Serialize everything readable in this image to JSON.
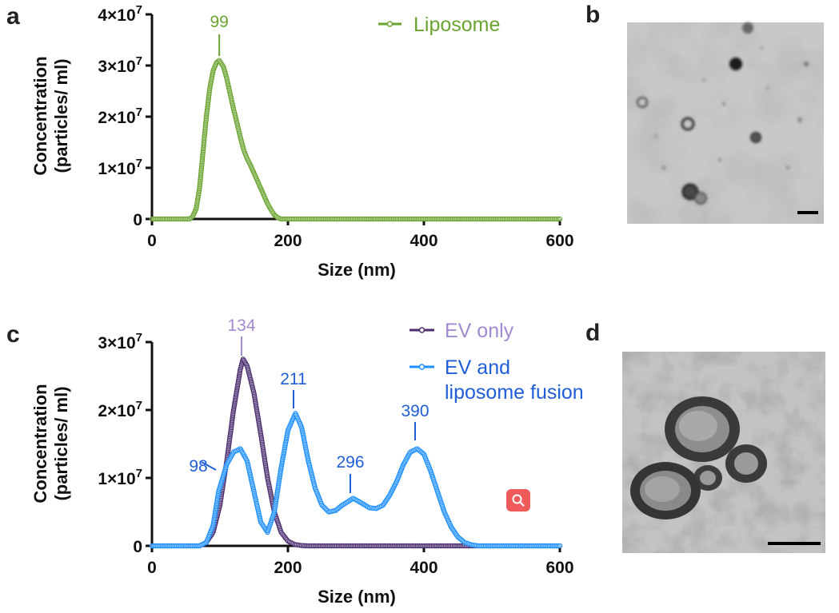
{
  "panels": {
    "a": "a",
    "b": "b",
    "c": "c",
    "d": "d"
  },
  "axes": {
    "ylabel_line1": "Concentration",
    "ylabel_line2": "(particles/ ml)",
    "xlabel": "Size (nm)"
  },
  "chart_data": [
    {
      "type": "line",
      "panel": "a",
      "xlabel": "Size (nm)",
      "ylabel": "Concentration (particles/ ml)",
      "xlim": [
        0,
        600
      ],
      "ylim": [
        0,
        40000000
      ],
      "x_ticks": [
        "0",
        "200",
        "400",
        "600"
      ],
      "y_ticks": [
        "0",
        "1×10^7",
        "2×10^7",
        "3×10^7",
        "4×10^7"
      ],
      "legend_position": "top-right",
      "series": [
        {
          "name": "Liposome",
          "color": "#6aa430",
          "x": [
            0,
            55,
            60,
            65,
            70,
            75,
            80,
            85,
            90,
            95,
            99,
            105,
            110,
            115,
            120,
            125,
            130,
            135,
            140,
            145,
            150,
            155,
            160,
            165,
            170,
            175,
            180,
            185,
            190,
            200,
            250,
            300,
            350,
            400,
            450,
            500,
            550,
            600
          ],
          "y": [
            0,
            0,
            500000,
            2000000,
            6000000,
            13000000,
            20000000,
            25500000,
            29000000,
            30600000,
            31000000,
            29800000,
            27500000,
            24500000,
            21500000,
            18800000,
            16000000,
            13500000,
            11800000,
            10500000,
            9000000,
            7500000,
            6000000,
            4500000,
            3000000,
            1800000,
            800000,
            250000,
            0,
            0,
            0,
            0,
            0,
            0,
            0,
            0,
            0,
            0
          ]
        }
      ],
      "annotations": [
        {
          "x": 99,
          "label": "99"
        }
      ]
    },
    {
      "type": "line",
      "panel": "c",
      "xlabel": "Size (nm)",
      "ylabel": "Concentration (particles/ ml)",
      "xlim": [
        0,
        600
      ],
      "ylim": [
        0,
        30000000
      ],
      "x_ticks": [
        "0",
        "200",
        "400",
        "600"
      ],
      "y_ticks": [
        "0",
        "1×10^7",
        "2×10^7",
        "3×10^7"
      ],
      "legend_position": "top-right",
      "series": [
        {
          "name": "EV only",
          "color": "#4b2d6f",
          "x": [
            0,
            70,
            80,
            90,
            100,
            110,
            120,
            130,
            134,
            140,
            150,
            160,
            170,
            180,
            190,
            200,
            210,
            220,
            230,
            600
          ],
          "y": [
            0,
            0,
            500000,
            2000000,
            6000000,
            12500000,
            20000000,
            26000000,
            27500000,
            26500000,
            22500000,
            16500000,
            10000000,
            5000000,
            2000000,
            700000,
            200000,
            50000,
            0,
            0
          ]
        },
        {
          "name": "EV and liposome fusion",
          "color": "#1e90ff",
          "x": [
            0,
            70,
            80,
            90,
            98,
            110,
            120,
            130,
            140,
            150,
            160,
            170,
            180,
            190,
            200,
            211,
            220,
            230,
            240,
            250,
            260,
            270,
            280,
            296,
            310,
            320,
            330,
            340,
            350,
            360,
            370,
            380,
            390,
            400,
            410,
            420,
            430,
            440,
            450,
            460,
            470,
            480,
            600
          ],
          "y": [
            0,
            0,
            500000,
            3000000,
            8000000,
            12000000,
            13800000,
            14300000,
            12500000,
            8000000,
            3500000,
            2000000,
            5000000,
            11500000,
            17000000,
            19500000,
            17500000,
            12500000,
            8500000,
            6000000,
            5000000,
            5200000,
            6000000,
            7000000,
            6200000,
            5600000,
            5500000,
            6000000,
            7500000,
            9500000,
            12000000,
            13800000,
            14300000,
            13500000,
            11000000,
            8000000,
            5000000,
            2800000,
            1300000,
            500000,
            150000,
            0,
            0
          ]
        }
      ],
      "annotations": [
        {
          "x": 98,
          "label": "98",
          "color": "#1f5ed8"
        },
        {
          "x": 134,
          "label": "134",
          "color": "#a08ad0"
        },
        {
          "x": 211,
          "label": "211",
          "color": "#1f5ed8"
        },
        {
          "x": 296,
          "label": "296",
          "color": "#1f5ed8"
        },
        {
          "x": 390,
          "label": "390",
          "color": "#1f5ed8"
        }
      ]
    }
  ],
  "legend_colors": {
    "liposome_text": "#6aa430",
    "ev_only_text": "#a08ad0",
    "fusion_text": "#1f5ed8"
  },
  "images": {
    "b": {
      "kind": "TEM micrograph, negative stain, small vesicles"
    },
    "d": {
      "kind": "TEM micrograph, fused vesicles"
    }
  },
  "icons": {
    "zoom": "search-icon"
  }
}
